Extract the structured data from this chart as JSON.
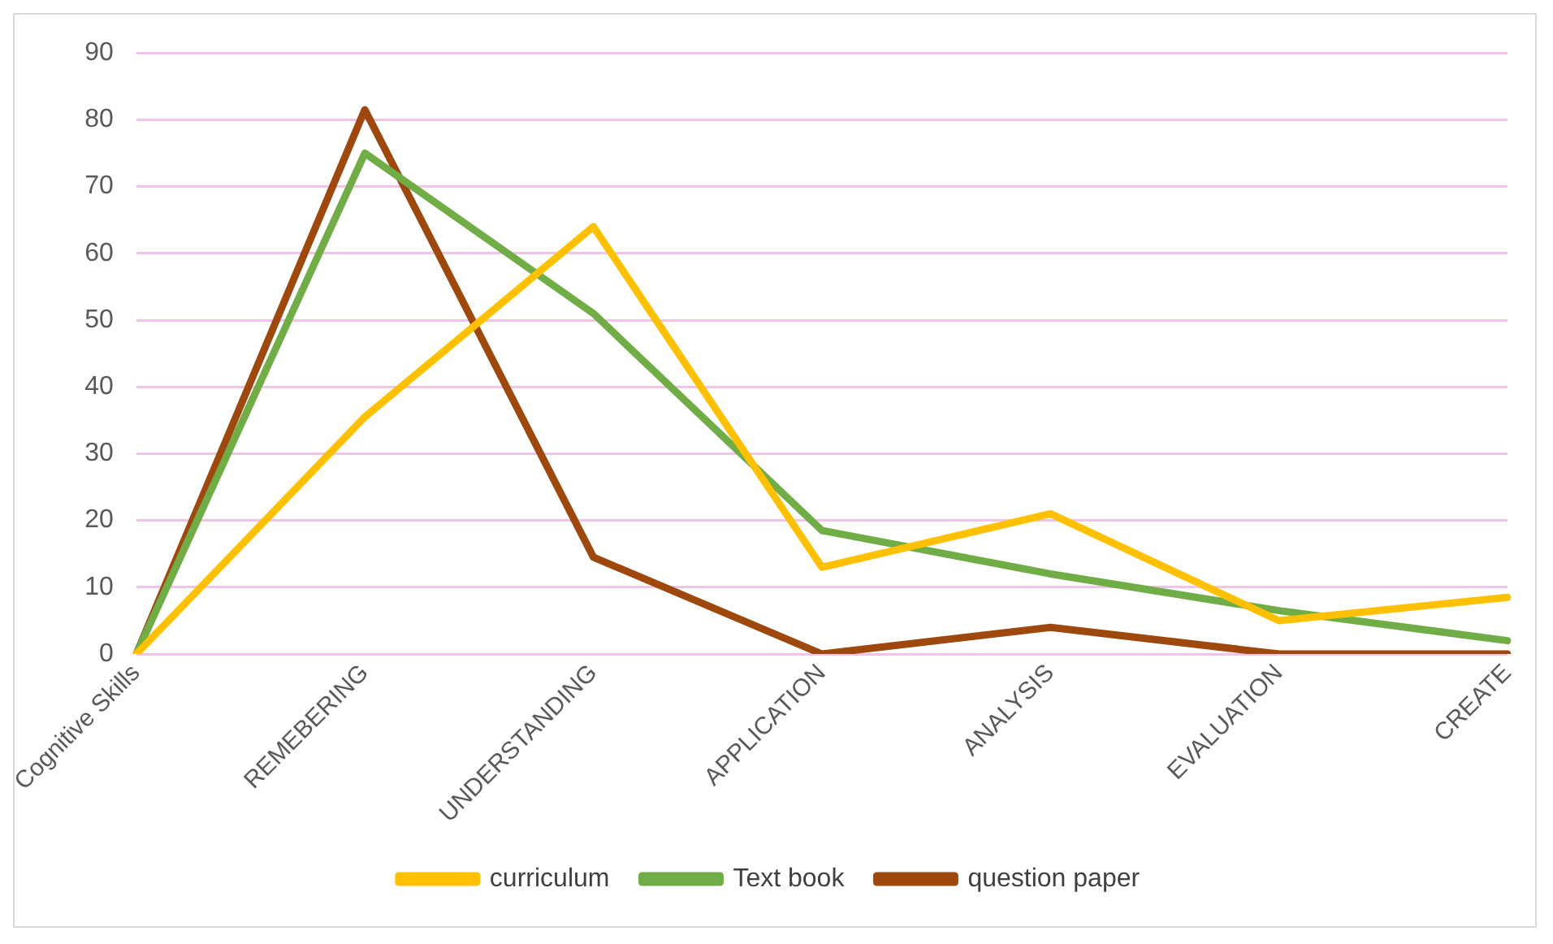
{
  "chart_data": {
    "type": "line",
    "categories": [
      "Cognitive Skills",
      "REMEBERING",
      "UNDERSTANDING",
      "APPLICATION",
      "ANALYSIS",
      "EVALUATION",
      "CREATE"
    ],
    "series": [
      {
        "name": "curriculum",
        "color": "#ffc000",
        "values": [
          0,
          35.5,
          64,
          13,
          21,
          5,
          8.5
        ]
      },
      {
        "name": "Text book",
        "color": "#70ad47",
        "values": [
          0,
          75,
          51,
          18.5,
          12,
          6.5,
          2
        ]
      },
      {
        "name": "question paper",
        "color": "#9e480e",
        "values": [
          0,
          81.5,
          14.5,
          0,
          4,
          0,
          0
        ]
      }
    ],
    "ylim": [
      0,
      90
    ],
    "yticks": [
      0,
      10,
      20,
      30,
      40,
      50,
      60,
      70,
      80,
      90
    ],
    "grid": "y",
    "legend": "bottom",
    "marker": "none",
    "line_style": "solid"
  }
}
